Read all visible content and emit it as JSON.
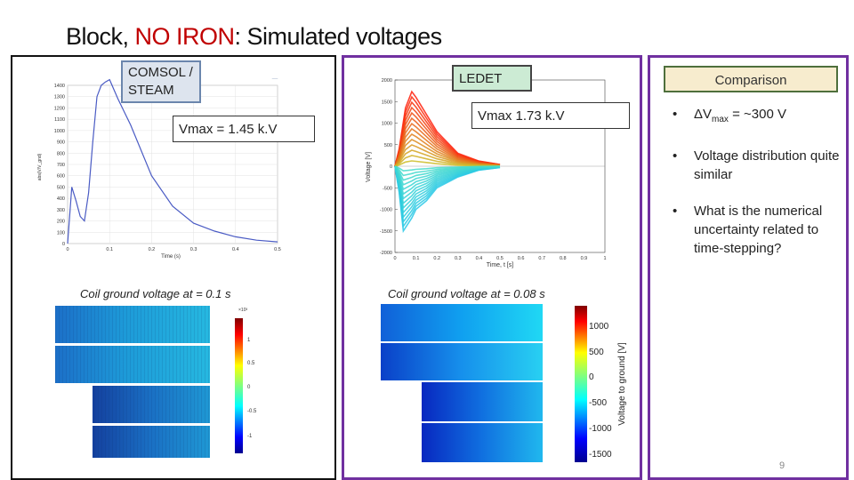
{
  "slide": {
    "title_prefix": "Block, ",
    "title_highlight": "NO IRON",
    "title_suffix": ": Simulated voltages",
    "highlight_color": "#c00000",
    "page_number": "9"
  },
  "comsol": {
    "label_line1": "COMSOL /",
    "label_line2": "STEAM",
    "vmax": "Vmax = 1.45 k.V",
    "caption": "Coil ground voltage at = 0.1 s"
  },
  "ledet": {
    "label": "LEDET",
    "vmax": "Vmax 1.73 k.V",
    "caption": "Coil ground voltage at = 0.08 s"
  },
  "comparison": {
    "header": "Comparison",
    "bullet1_prefix": "ΔV",
    "bullet1_sub": "max",
    "bullet1_suffix": " = ~300 V",
    "bullet2": "Voltage distribution quite similar",
    "bullet3": "What is the numerical uncertainty related to time-stepping?",
    "bullet_marker": "•"
  },
  "chart_data": [
    {
      "type": "line",
      "title": "",
      "xlabel": "Time (s)",
      "ylabel": "abs(V/V_gnd)",
      "xlim": [
        0,
        0.5
      ],
      "ylim": [
        0,
        1400
      ],
      "x_ticks": [
        "0",
        "0.1",
        "0.2",
        "0.3",
        "0.4",
        "0.5"
      ],
      "y_ticks": [
        "0",
        "100",
        "200",
        "300",
        "400",
        "500",
        "600",
        "700",
        "800",
        "900",
        "1000",
        "1100",
        "1200",
        "1300",
        "1400"
      ],
      "series": [
        {
          "name": "COMSOL/STEAM",
          "x": [
            0,
            0.01,
            0.02,
            0.03,
            0.04,
            0.05,
            0.06,
            0.07,
            0.08,
            0.09,
            0.1,
            0.12,
            0.15,
            0.2,
            0.25,
            0.3,
            0.35,
            0.4,
            0.45,
            0.5
          ],
          "y": [
            0,
            500,
            380,
            240,
            200,
            450,
            900,
            1300,
            1400,
            1430,
            1450,
            1280,
            1050,
            600,
            330,
            180,
            110,
            60,
            30,
            15
          ]
        }
      ],
      "color": "#4a5bc4"
    },
    {
      "type": "line",
      "title": "",
      "xlabel": "Time, t [s]",
      "ylabel": "Voltage [V]",
      "xlim": [
        0,
        1
      ],
      "ylim": [
        -2000,
        2000
      ],
      "x_ticks": [
        "0",
        "0.1",
        "0.2",
        "0.3",
        "0.4",
        "0.5",
        "0.6",
        "0.7",
        "0.8",
        "0.9",
        "1"
      ],
      "y_ticks": [
        "2000",
        "1500",
        "1000",
        "500",
        "0",
        "-500",
        "-1000",
        "-1500",
        "-2000"
      ],
      "series": [
        {
          "name": "positive envelope",
          "x": [
            0,
            0.02,
            0.05,
            0.08,
            0.1,
            0.15,
            0.2,
            0.3,
            0.4,
            0.5
          ],
          "y": [
            0,
            400,
            1350,
            1730,
            1600,
            1200,
            800,
            300,
            120,
            40
          ]
        },
        {
          "name": "negative envelope",
          "x": [
            0,
            0.02,
            0.04,
            0.08,
            0.1,
            0.15,
            0.2,
            0.3,
            0.4,
            0.5
          ],
          "y": [
            0,
            -600,
            -1500,
            -1200,
            -1000,
            -800,
            -500,
            -250,
            -90,
            -30
          ]
        }
      ],
      "colors": [
        "#d62000",
        "#20d0e0"
      ]
    },
    {
      "type": "heatmap",
      "colorbar_ticks": [
        "1",
        "0.5",
        "0",
        "-0.5",
        "-1"
      ],
      "colorbar_exponent": "×10³",
      "rows": 4
    },
    {
      "type": "heatmap",
      "colorbar_label": "Voltage to ground [V]",
      "colorbar_ticks": [
        "1000",
        "500",
        "0",
        "-500",
        "-1000",
        "-1500"
      ],
      "rows": 4
    }
  ]
}
